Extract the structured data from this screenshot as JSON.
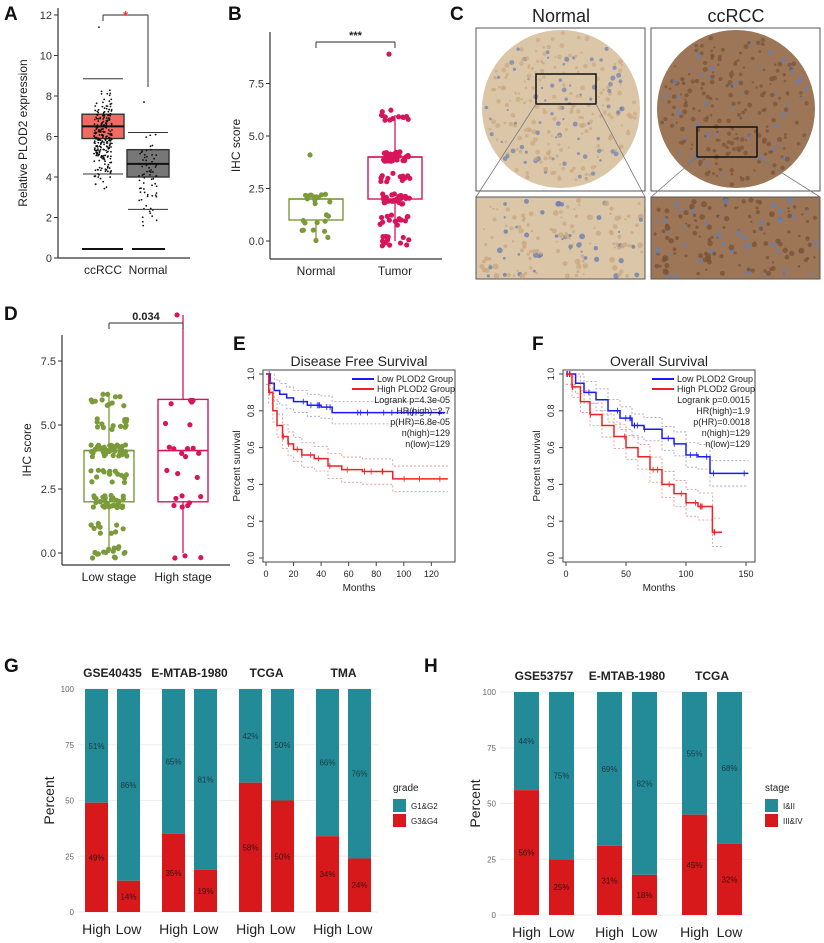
{
  "panel_labels": [
    "A",
    "B",
    "C",
    "D",
    "E",
    "F",
    "G",
    "H"
  ],
  "chart_data": [
    {
      "panel": "A",
      "type": "box",
      "ylabel": "Relative PLOD2 expression",
      "categories": [
        "ccRCC",
        "Normal"
      ],
      "yticks": [
        0,
        2,
        4,
        6,
        8,
        10,
        12
      ],
      "ylim": [
        0,
        12
      ],
      "boxes": [
        {
          "name": "ccRCC",
          "q1": 5.9,
          "median": 6.5,
          "q3": 7.1,
          "whisker_low": 4.15,
          "whisker_high": 8.85,
          "min": 1.8,
          "max": 11.4,
          "color": "#f26b62"
        },
        {
          "name": "Normal",
          "q1": 4.0,
          "median": 4.65,
          "q3": 5.35,
          "whisker_low": 2.4,
          "whisker_high": 6.2,
          "min": 1.6,
          "max": 7.7,
          "color": "#777777"
        }
      ],
      "significance": "*"
    },
    {
      "panel": "B",
      "type": "box",
      "ylabel": "IHC score",
      "categories": [
        "Normal",
        "Tumor"
      ],
      "yticks": [
        "0.0",
        "2.5",
        "5.0",
        "7.5"
      ],
      "ylim": [
        -0.4,
        9.5
      ],
      "boxes": [
        {
          "name": "Normal",
          "q1": 1.0,
          "median": 2.0,
          "q3": 2.0,
          "whisker_low": 0.0,
          "whisker_high": 2.0,
          "min": -0.4,
          "max": 4.1,
          "color": "#7b9a3a"
        },
        {
          "name": "Tumor",
          "q1": 2.0,
          "median": 4.0,
          "q3": 4.0,
          "whisker_low": 0.0,
          "whisker_high": 6.0,
          "min": -0.3,
          "max": 8.9,
          "color": "#d6155a"
        }
      ],
      "significance": "***"
    },
    {
      "panel": "C",
      "type": "image",
      "titles": [
        "Normal",
        "ccRCC"
      ]
    },
    {
      "panel": "D",
      "type": "box",
      "ylabel": "IHC score",
      "categories": [
        "Low stage",
        "High stage"
      ],
      "yticks": [
        "0.0",
        "2.5",
        "5.0",
        "7.5"
      ],
      "ylim": [
        -0.4,
        9.5
      ],
      "boxes": [
        {
          "name": "Low stage",
          "q1": 2.0,
          "median": 4.0,
          "q3": 4.0,
          "whisker_low": 0.0,
          "whisker_high": 6.2,
          "min": -0.2,
          "max": 6.2,
          "color": "#7b9a3a"
        },
        {
          "name": "High stage",
          "q1": 2.0,
          "median": 4.0,
          "q3": 6.0,
          "whisker_low": 0.0,
          "whisker_high": 9.3,
          "min": -0.2,
          "max": 9.3,
          "color": "#d6155a"
        }
      ],
      "significance": "0.034"
    },
    {
      "panel": "E",
      "type": "line",
      "title": "Disease Free Survival",
      "xlabel": "Months",
      "ylabel": "Percent survival",
      "xticks": [
        0,
        20,
        40,
        60,
        80,
        100,
        120
      ],
      "xlim": [
        0,
        135
      ],
      "yticks": [
        "0.0",
        "0.2",
        "0.4",
        "0.6",
        "0.8",
        "1.0"
      ],
      "ylim": [
        0,
        1
      ],
      "series": [
        {
          "name": "Low PLOD2 Group",
          "color": "#1a1aff",
          "x": [
            0,
            3,
            6,
            10,
            15,
            20,
            30,
            40,
            48,
            130
          ],
          "y": [
            1.0,
            0.95,
            0.91,
            0.89,
            0.87,
            0.85,
            0.83,
            0.82,
            0.79,
            0.79
          ]
        },
        {
          "name": "High PLOD2 Group",
          "color": "#ee2222",
          "x": [
            0,
            2,
            5,
            8,
            12,
            16,
            20,
            26,
            35,
            45,
            55,
            70,
            92,
            132
          ],
          "y": [
            1.0,
            0.9,
            0.8,
            0.72,
            0.66,
            0.62,
            0.59,
            0.56,
            0.54,
            0.5,
            0.48,
            0.47,
            0.43,
            0.43
          ]
        }
      ],
      "legend_stats": [
        "Logrank p=4.3e-05",
        "HR(high)=2.7",
        "p(HR)=6.8e-05",
        "n(high)=129",
        "n(low)=129"
      ],
      "legend": "top-right"
    },
    {
      "panel": "F",
      "type": "line",
      "title": "Overall Survival",
      "xlabel": "Months",
      "ylabel": "Percent survival",
      "xticks": [
        0,
        50,
        100,
        150
      ],
      "xlim": [
        0,
        155
      ],
      "yticks": [
        "0.0",
        "0.2",
        "0.4",
        "0.6",
        "0.8",
        "1.0"
      ],
      "ylim": [
        0,
        1
      ],
      "series": [
        {
          "name": "Low PLOD2 Group",
          "color": "#1a1aff",
          "x": [
            0,
            8,
            15,
            25,
            35,
            45,
            55,
            65,
            80,
            90,
            100,
            110,
            120,
            152
          ],
          "y": [
            1.0,
            0.95,
            0.9,
            0.86,
            0.8,
            0.76,
            0.72,
            0.7,
            0.65,
            0.62,
            0.56,
            0.55,
            0.46,
            0.46
          ]
        },
        {
          "name": "High PLOD2 Group",
          "color": "#ee2222",
          "x": [
            0,
            5,
            12,
            20,
            30,
            40,
            50,
            60,
            70,
            80,
            90,
            100,
            110,
            120,
            122,
            130
          ],
          "y": [
            1.0,
            0.93,
            0.85,
            0.78,
            0.72,
            0.66,
            0.6,
            0.55,
            0.48,
            0.4,
            0.35,
            0.3,
            0.28,
            0.28,
            0.14,
            0.14
          ]
        }
      ],
      "legend_stats": [
        "Logrank p=0.0015",
        "HR(high)=1.9",
        "p(HR)=0.0018",
        "n(high)=129",
        "n(low)=129"
      ],
      "legend": "top-right"
    },
    {
      "panel": "G",
      "type": "bar",
      "stacked": true,
      "ylabel": "Percent",
      "yticks": [
        0,
        25,
        50,
        75,
        100
      ],
      "ylim": [
        0,
        100
      ],
      "legend_title": "grade",
      "legend": "right",
      "series_names": [
        "G1&G2",
        "G3&G4"
      ],
      "colors": [
        "#238b98",
        "#d7191c"
      ],
      "facets": [
        {
          "title": "GSE40435",
          "bars": [
            {
              "x": "High",
              "top": 51,
              "bottom": 49
            },
            {
              "x": "Low",
              "top": 86,
              "bottom": 14
            }
          ]
        },
        {
          "title": "E-MTAB-1980",
          "bars": [
            {
              "x": "High",
              "top": 65,
              "bottom": 35
            },
            {
              "x": "Low",
              "top": 81,
              "bottom": 19
            }
          ]
        },
        {
          "title": "TCGA",
          "bars": [
            {
              "x": "High",
              "top": 42,
              "bottom": 58
            },
            {
              "x": "Low",
              "top": 50,
              "bottom": 50
            }
          ]
        },
        {
          "title": "TMA",
          "bars": [
            {
              "x": "High",
              "top": 66,
              "bottom": 34
            },
            {
              "x": "Low",
              "top": 76,
              "bottom": 24
            }
          ]
        }
      ]
    },
    {
      "panel": "H",
      "type": "bar",
      "stacked": true,
      "ylabel": "Percent",
      "yticks": [
        0,
        25,
        50,
        75,
        100
      ],
      "ylim": [
        0,
        100
      ],
      "legend_title": "stage",
      "legend": "right",
      "series_names": [
        "I&II",
        "III&IV"
      ],
      "colors": [
        "#238b98",
        "#d7191c"
      ],
      "facets": [
        {
          "title": "GSE53757",
          "bars": [
            {
              "x": "High",
              "top": 44,
              "bottom": 56
            },
            {
              "x": "Low",
              "top": 75,
              "bottom": 25
            }
          ]
        },
        {
          "title": "E-MTAB-1980",
          "bars": [
            {
              "x": "High",
              "top": 69,
              "bottom": 31
            },
            {
              "x": "Low",
              "top": 82,
              "bottom": 18
            }
          ]
        },
        {
          "title": "TCGA",
          "bars": [
            {
              "x": "High",
              "top": 55,
              "bottom": 45
            },
            {
              "x": "Low",
              "top": 68,
              "bottom": 32
            }
          ]
        }
      ]
    }
  ]
}
